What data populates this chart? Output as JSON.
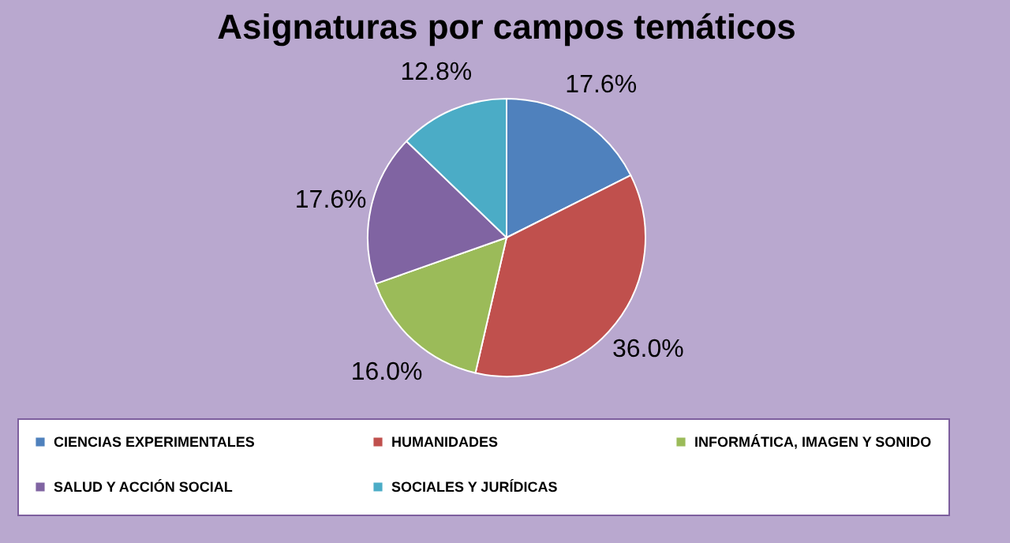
{
  "chart_data": {
    "type": "pie",
    "title": "Asignaturas por campos temáticos",
    "categories": [
      "CIENCIAS EXPERIMENTALES",
      "HUMANIDADES",
      "INFORMÁTICA, IMAGEN Y SONIDO",
      "SALUD Y ACCIÓN SOCIAL",
      "SOCIALES Y JURÍDICAS"
    ],
    "values": [
      17.6,
      36.0,
      16.0,
      17.6,
      12.8
    ],
    "value_labels": [
      "17.6%",
      "36.0%",
      "16.0%",
      "17.6%",
      "12.8%"
    ],
    "colors": [
      "#4f81bd",
      "#c0504d",
      "#9bbb59",
      "#8064a2",
      "#4bacc6"
    ],
    "legend": "bottom"
  }
}
